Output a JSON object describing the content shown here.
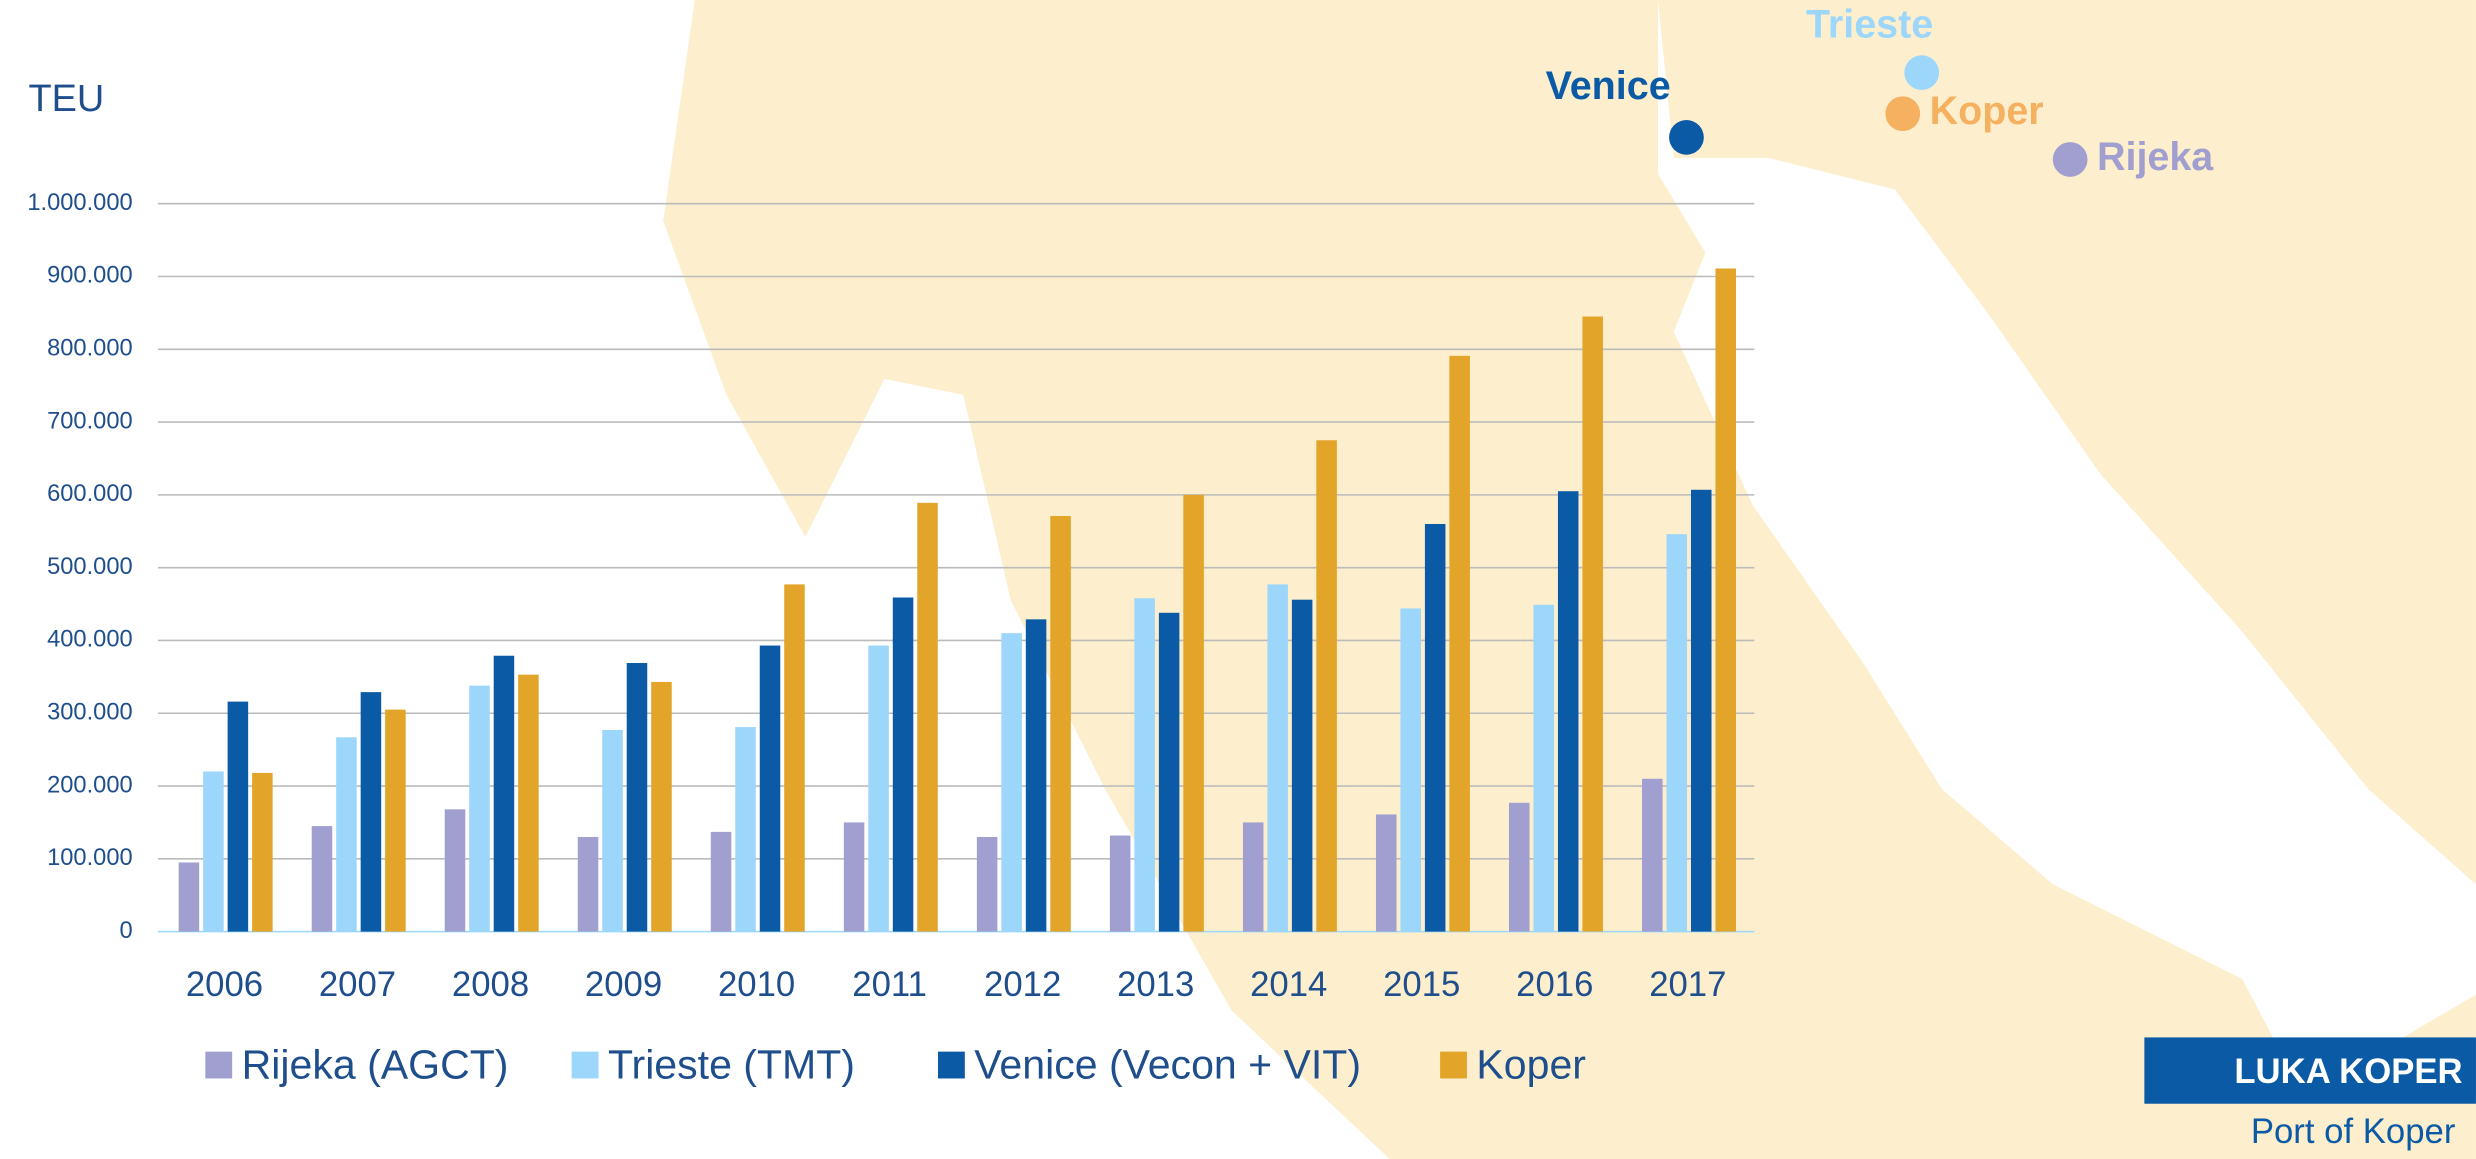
{
  "chart_data": {
    "type": "bar",
    "y_axis_label": "TEU",
    "categories": [
      "2006",
      "2007",
      "2008",
      "2009",
      "2010",
      "2011",
      "2012",
      "2013",
      "2014",
      "2015",
      "2016",
      "2017"
    ],
    "series": [
      {
        "name": "Rijeka (AGCT)",
        "color": "#a09fd0",
        "values": [
          95000,
          145000,
          168000,
          130000,
          137000,
          150000,
          130000,
          132000,
          150000,
          161000,
          177000,
          210000
        ]
      },
      {
        "name": "Trieste (TMT)",
        "color": "#9dd6fb",
        "values": [
          220000,
          267000,
          338000,
          277000,
          281000,
          393000,
          410000,
          458000,
          477000,
          444000,
          449000,
          546000
        ]
      },
      {
        "name": "Venice (Vecon + VIT)",
        "color": "#0b5aa5",
        "values": [
          316000,
          329000,
          379000,
          369000,
          393000,
          459000,
          429000,
          438000,
          456000,
          560000,
          605000,
          607000
        ]
      },
      {
        "name": "Koper",
        "color": "#e3a42a",
        "values": [
          218000,
          305000,
          353000,
          343000,
          477000,
          589000,
          571000,
          600000,
          675000,
          791000,
          845000,
          911000
        ]
      }
    ],
    "ylim": [
      0,
      1000000
    ],
    "yticks": [
      0,
      {
        "value": 100000,
        "label": "100.000"
      },
      {
        "value": 200000,
        "label": "200.000"
      },
      {
        "value": 300000,
        "label": "300.000"
      },
      {
        "value": 400000,
        "label": "400.000"
      },
      {
        "value": 500000,
        "label": "500.000"
      },
      {
        "value": 600000,
        "label": "600.000"
      },
      {
        "value": 700000,
        "label": "700.000"
      },
      {
        "value": 800000,
        "label": "800.000"
      },
      {
        "value": 900000,
        "label": "900.000"
      },
      {
        "value": 1000000,
        "label": "1.000.000"
      }
    ],
    "grid": true
  },
  "map_labels": [
    {
      "label": "Venice",
      "color": "#0b5aa5"
    },
    {
      "label": "Trieste",
      "color": "#9dd6fb"
    },
    {
      "label": "Koper",
      "color": "#f5b060"
    },
    {
      "label": "Rijeka",
      "color": "#a09fd0"
    }
  ],
  "logo": {
    "brand": "LUKA KOPER",
    "subtitle": "Port of Koper"
  }
}
